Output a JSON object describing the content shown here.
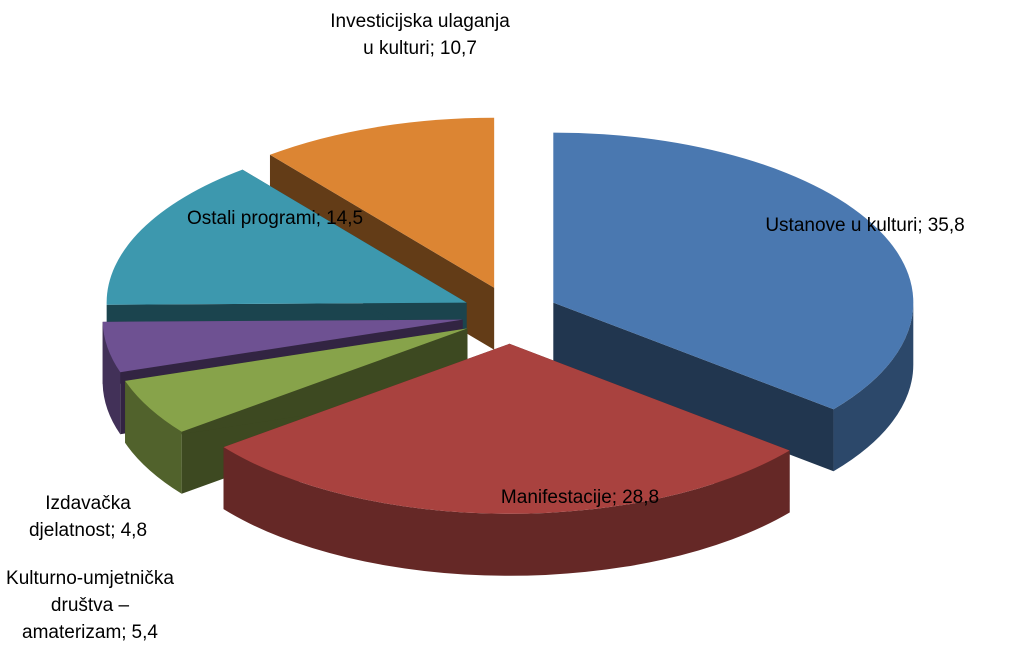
{
  "chart_data": {
    "type": "pie3d",
    "categories": [
      "Ustanove u kulturi;",
      "Manifestacije;",
      "Kulturno-umjetnička društva –amaterizam;",
      "Izdavačka djelatnost;",
      "Ostali programi;",
      "Investicijska ulaganja u kulturi;"
    ],
    "values": [
      35.8,
      28.8,
      5.4,
      4.8,
      14.5,
      10.7
    ],
    "value_labels": [
      "35,8",
      "28,8",
      "5,4",
      "4,8",
      "14,5",
      "10,7"
    ],
    "colors": [
      "#4a78b0",
      "#a9423f",
      "#87a34a",
      "#6e5192",
      "#3d98ae",
      "#dc8533"
    ]
  }
}
